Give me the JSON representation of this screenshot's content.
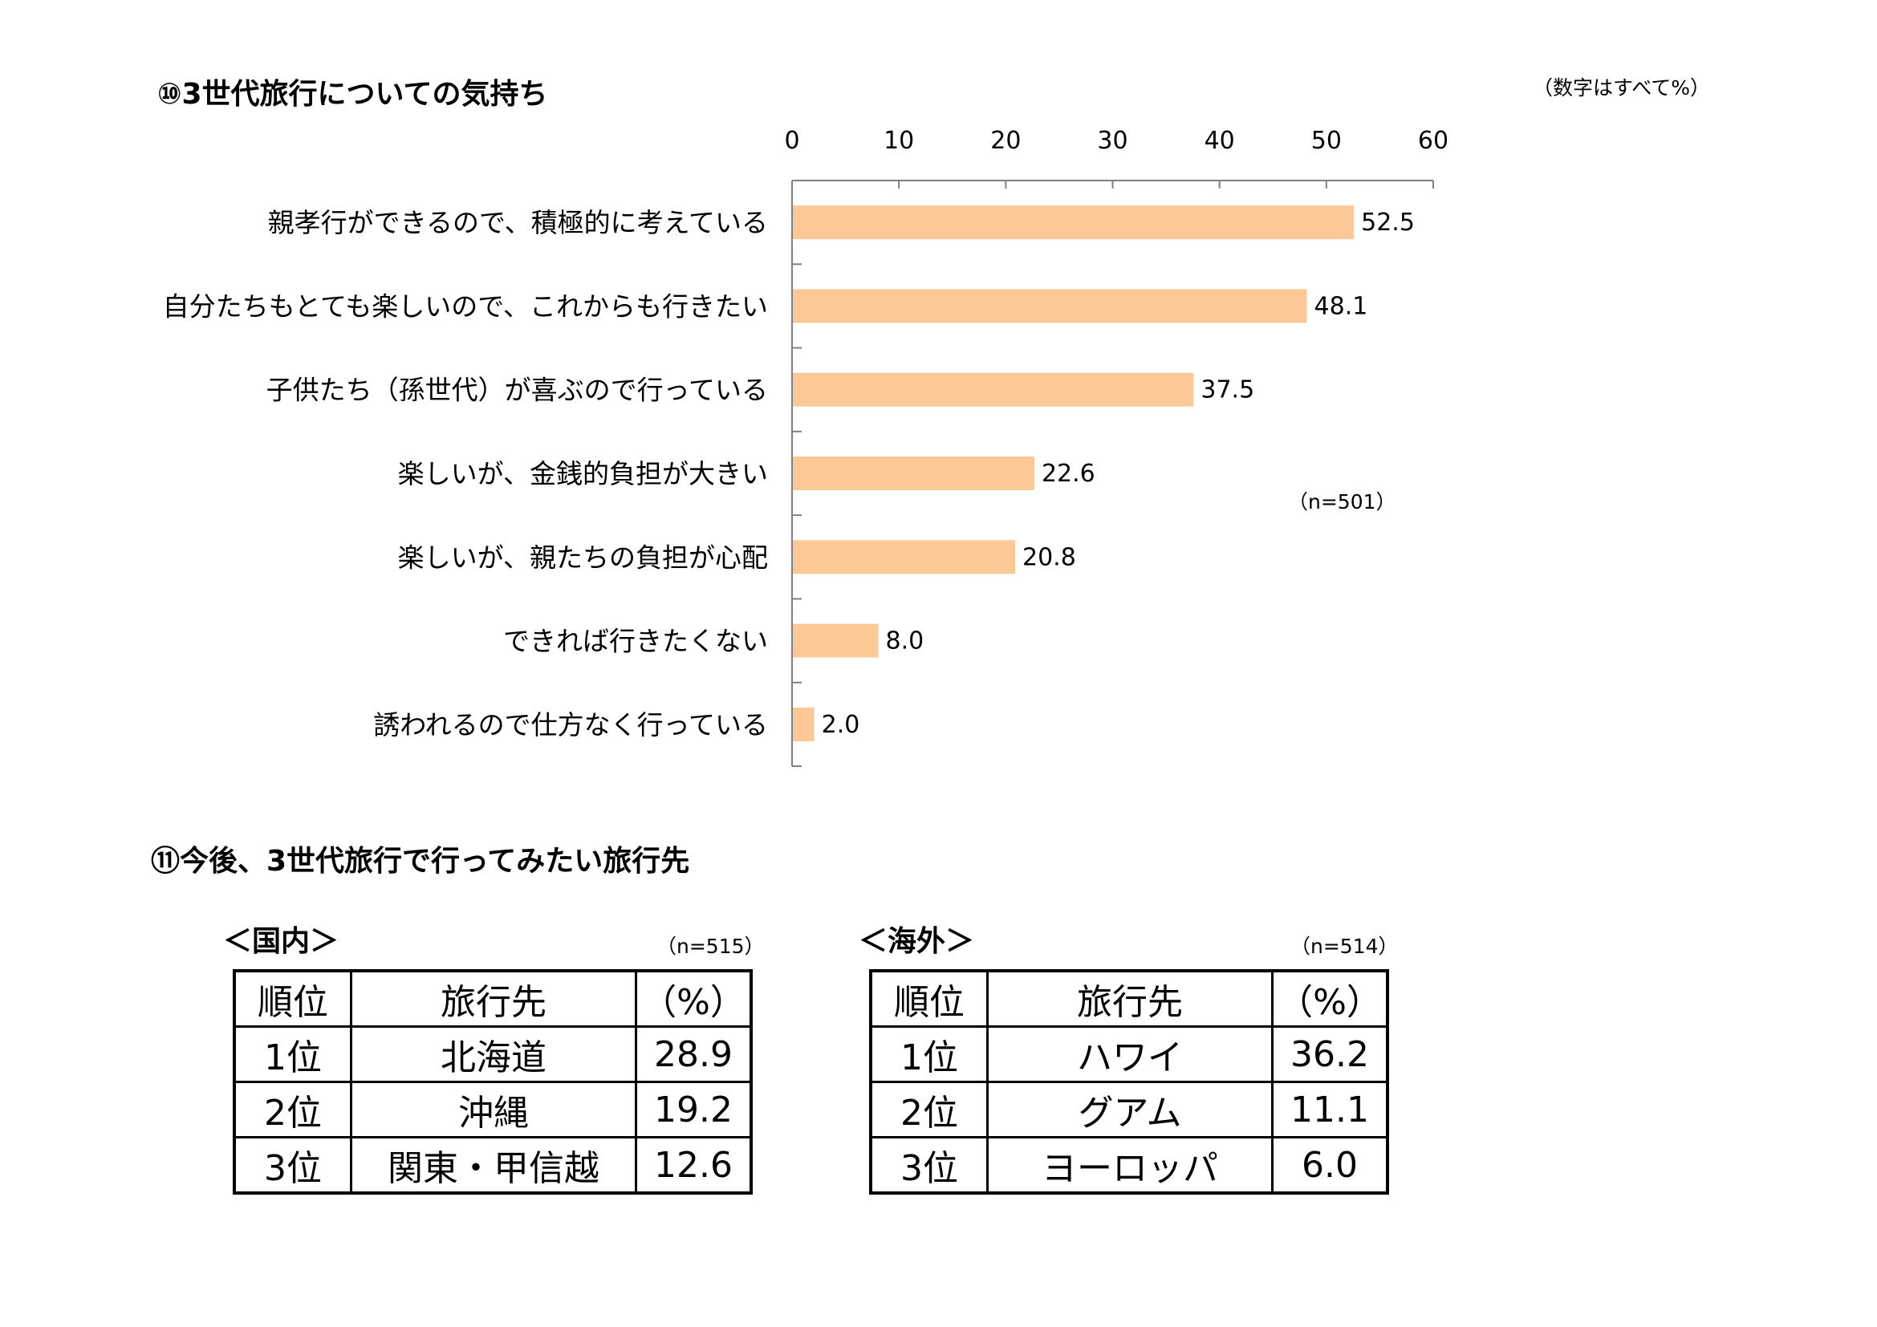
{
  "section10": {
    "title": "⑩3世代旅行についての気持ち",
    "unit_note": "（数字はすべて%）",
    "n_note": "（n=501）"
  },
  "chart_data": {
    "type": "bar",
    "orientation": "horizontal",
    "categories": [
      "親孝行ができるので、積極的に考えている",
      "自分たちもとても楽しいので、これからも行きたい",
      "子供たち（孫世代）が喜ぶので行っている",
      "楽しいが、金銭的負担が大きい",
      "楽しいが、親たちの負担が心配",
      "できれば行きたくない",
      "誘われるので仕方なく行っている"
    ],
    "values": [
      52.5,
      48.1,
      37.5,
      22.6,
      20.8,
      8.0,
      2.0
    ],
    "value_labels": [
      "52.5",
      "48.1",
      "37.5",
      "22.6",
      "20.8",
      "8.0",
      "2.0"
    ],
    "xlim": [
      0,
      60
    ],
    "xticks": [
      "0",
      "10",
      "20",
      "30",
      "40",
      "50",
      "60"
    ],
    "axis_position": "top",
    "grid": false,
    "bar_color": "#FCC896"
  },
  "section11": {
    "title": "⑪今後、3世代旅行で行ってみたい旅行先",
    "domestic": {
      "heading": "＜国内＞",
      "n_note": "（n=515）",
      "headers": [
        "順位",
        "旅行先",
        "（%）"
      ],
      "rows": [
        [
          "1位",
          "北海道",
          "28.9"
        ],
        [
          "2位",
          "沖縄",
          "19.2"
        ],
        [
          "3位",
          "関東・甲信越",
          "12.6"
        ]
      ]
    },
    "overseas": {
      "heading": "＜海外＞",
      "n_note": "（n=514）",
      "headers": [
        "順位",
        "旅行先",
        "（%）"
      ],
      "rows": [
        [
          "1位",
          "ハワイ",
          "36.2"
        ],
        [
          "2位",
          "グアム",
          "11.1"
        ],
        [
          "3位",
          "ヨーロッパ",
          "6.0"
        ]
      ]
    }
  }
}
